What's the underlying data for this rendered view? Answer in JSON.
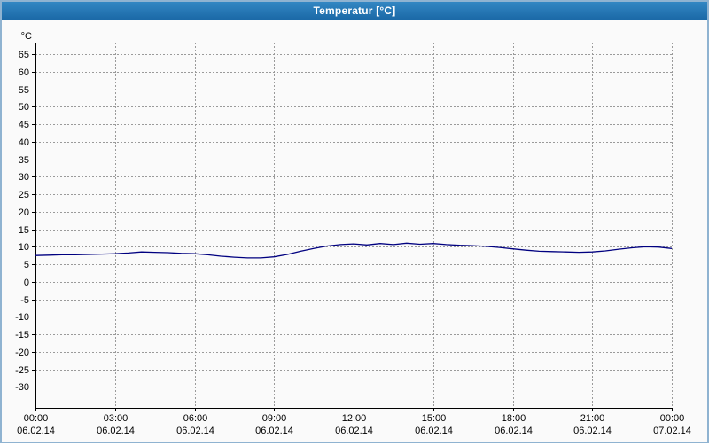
{
  "window": {
    "title": "Temperatur [°C]"
  },
  "chart_data": {
    "type": "line",
    "title": "Temperatur [°C]",
    "ylabel": "°C",
    "xlabel": "",
    "grid": true,
    "legend": "none",
    "line_color": "#000080",
    "xlim": [
      0,
      24
    ],
    "ylim": [
      -36,
      68.3
    ],
    "y_ticks": [
      65,
      60,
      55,
      50,
      45,
      40,
      35,
      30,
      25,
      20,
      15,
      10,
      5,
      0,
      -5,
      -10,
      -15,
      -20,
      -25,
      -30
    ],
    "x_ticks_hours": [
      0,
      3,
      6,
      9,
      12,
      15,
      18,
      21,
      24
    ],
    "x_tick_labels": [
      "00:00",
      "03:00",
      "06:00",
      "09:00",
      "12:00",
      "15:00",
      "18:00",
      "21:00",
      "00:00"
    ],
    "x_tick_dates": [
      "06.02.14",
      "06.02.14",
      "06.02.14",
      "06.02.14",
      "06.02.14",
      "06.02.14",
      "06.02.14",
      "06.02.14",
      "07.02.14"
    ],
    "series": [
      {
        "name": "Temperatur",
        "x": [
          0,
          0.5,
          1,
          1.5,
          2,
          2.5,
          3,
          3.5,
          4,
          4.5,
          5,
          5.5,
          6,
          6.5,
          7,
          7.5,
          8,
          8.5,
          9,
          9.5,
          10,
          10.5,
          11,
          11.5,
          12,
          12.5,
          13,
          13.5,
          14,
          14.5,
          15,
          15.5,
          16,
          16.5,
          17,
          17.5,
          18,
          18.5,
          19,
          19.5,
          20,
          20.5,
          21,
          21.5,
          22,
          22.5,
          23,
          23.5,
          24
        ],
        "values": [
          7.5,
          7.6,
          7.7,
          7.7,
          7.8,
          7.9,
          8.0,
          8.2,
          8.5,
          8.4,
          8.3,
          8.1,
          8.0,
          7.7,
          7.3,
          7.0,
          6.8,
          6.8,
          7.1,
          7.8,
          8.7,
          9.5,
          10.2,
          10.6,
          10.8,
          10.5,
          10.9,
          10.6,
          11.0,
          10.7,
          10.9,
          10.6,
          10.4,
          10.3,
          10.1,
          9.8,
          9.4,
          9.0,
          8.7,
          8.6,
          8.5,
          8.4,
          8.5,
          8.8,
          9.3,
          9.7,
          10.0,
          9.9,
          9.5
        ]
      }
    ]
  }
}
